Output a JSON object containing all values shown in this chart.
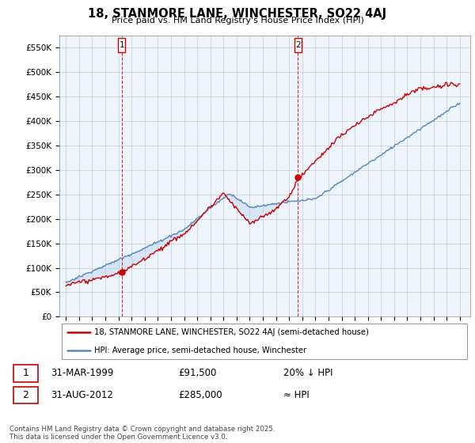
{
  "title": "18, STANMORE LANE, WINCHESTER, SO22 4AJ",
  "subtitle": "Price paid vs. HM Land Registry's House Price Index (HPI)",
  "ylabel_ticks": [
    "£0",
    "£50K",
    "£100K",
    "£150K",
    "£200K",
    "£250K",
    "£300K",
    "£350K",
    "£400K",
    "£450K",
    "£500K",
    "£550K"
  ],
  "ytick_values": [
    0,
    50000,
    100000,
    150000,
    200000,
    250000,
    300000,
    350000,
    400000,
    450000,
    500000,
    550000
  ],
  "ylim": [
    0,
    575000
  ],
  "legend_line1": "18, STANMORE LANE, WINCHESTER, SO22 4AJ (semi-detached house)",
  "legend_line2": "HPI: Average price, semi-detached house, Winchester",
  "purchase1_label": "1",
  "purchase1_date": "31-MAR-1999",
  "purchase1_price": "£91,500",
  "purchase1_hpi": "20% ↓ HPI",
  "purchase2_label": "2",
  "purchase2_date": "31-AUG-2012",
  "purchase2_price": "£285,000",
  "purchase2_hpi": "≈ HPI",
  "footer": "Contains HM Land Registry data © Crown copyright and database right 2025.\nThis data is licensed under the Open Government Licence v3.0.",
  "sale_color": "#cc0000",
  "hpi_color": "#5588bb",
  "fill_color": "#ddeeff",
  "background_color": "#ffffff",
  "chart_bg_color": "#eef4fb",
  "grid_color": "#cccccc",
  "marker1_year": 1999.25,
  "marker1_price": 91500,
  "marker2_year": 2012.67,
  "marker2_price": 285000,
  "xlim_left": 1994.5,
  "xlim_right": 2025.8
}
